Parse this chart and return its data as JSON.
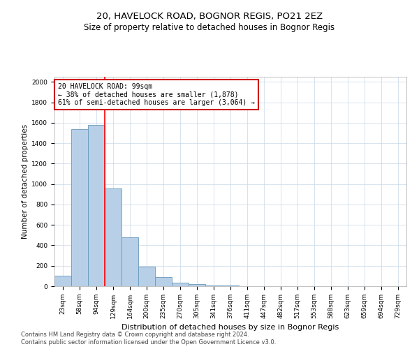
{
  "title1": "20, HAVELOCK ROAD, BOGNOR REGIS, PO21 2EZ",
  "title2": "Size of property relative to detached houses in Bognor Regis",
  "xlabel": "Distribution of detached houses by size in Bognor Regis",
  "ylabel": "Number of detached properties",
  "categories": [
    "23sqm",
    "58sqm",
    "94sqm",
    "129sqm",
    "164sqm",
    "200sqm",
    "235sqm",
    "270sqm",
    "305sqm",
    "341sqm",
    "376sqm",
    "411sqm",
    "447sqm",
    "482sqm",
    "517sqm",
    "553sqm",
    "588sqm",
    "623sqm",
    "659sqm",
    "694sqm",
    "729sqm"
  ],
  "values": [
    100,
    1540,
    1580,
    960,
    480,
    190,
    90,
    35,
    20,
    10,
    5,
    2,
    1,
    0,
    0,
    0,
    0,
    0,
    0,
    0,
    0
  ],
  "bar_color": "#b8cfe8",
  "bar_edge_color": "#6699bb",
  "red_line_x": 2.5,
  "annotation_line1": "20 HAVELOCK ROAD: 99sqm",
  "annotation_line2": "← 38% of detached houses are smaller (1,878)",
  "annotation_line3": "61% of semi-detached houses are larger (3,064) →",
  "annotation_box_color": "#ffffff",
  "annotation_box_edge": "#cc0000",
  "ylim": [
    0,
    2050
  ],
  "yticks": [
    0,
    200,
    400,
    600,
    800,
    1000,
    1200,
    1400,
    1600,
    1800,
    2000
  ],
  "footer1": "Contains HM Land Registry data © Crown copyright and database right 2024.",
  "footer2": "Contains public sector information licensed under the Open Government Licence v3.0.",
  "background_color": "#ffffff",
  "grid_color": "#c8d8e8",
  "title1_fontsize": 9.5,
  "title2_fontsize": 8.5,
  "xlabel_fontsize": 8,
  "ylabel_fontsize": 7.5,
  "tick_fontsize": 6.5,
  "annotation_fontsize": 7,
  "footer_fontsize": 6
}
